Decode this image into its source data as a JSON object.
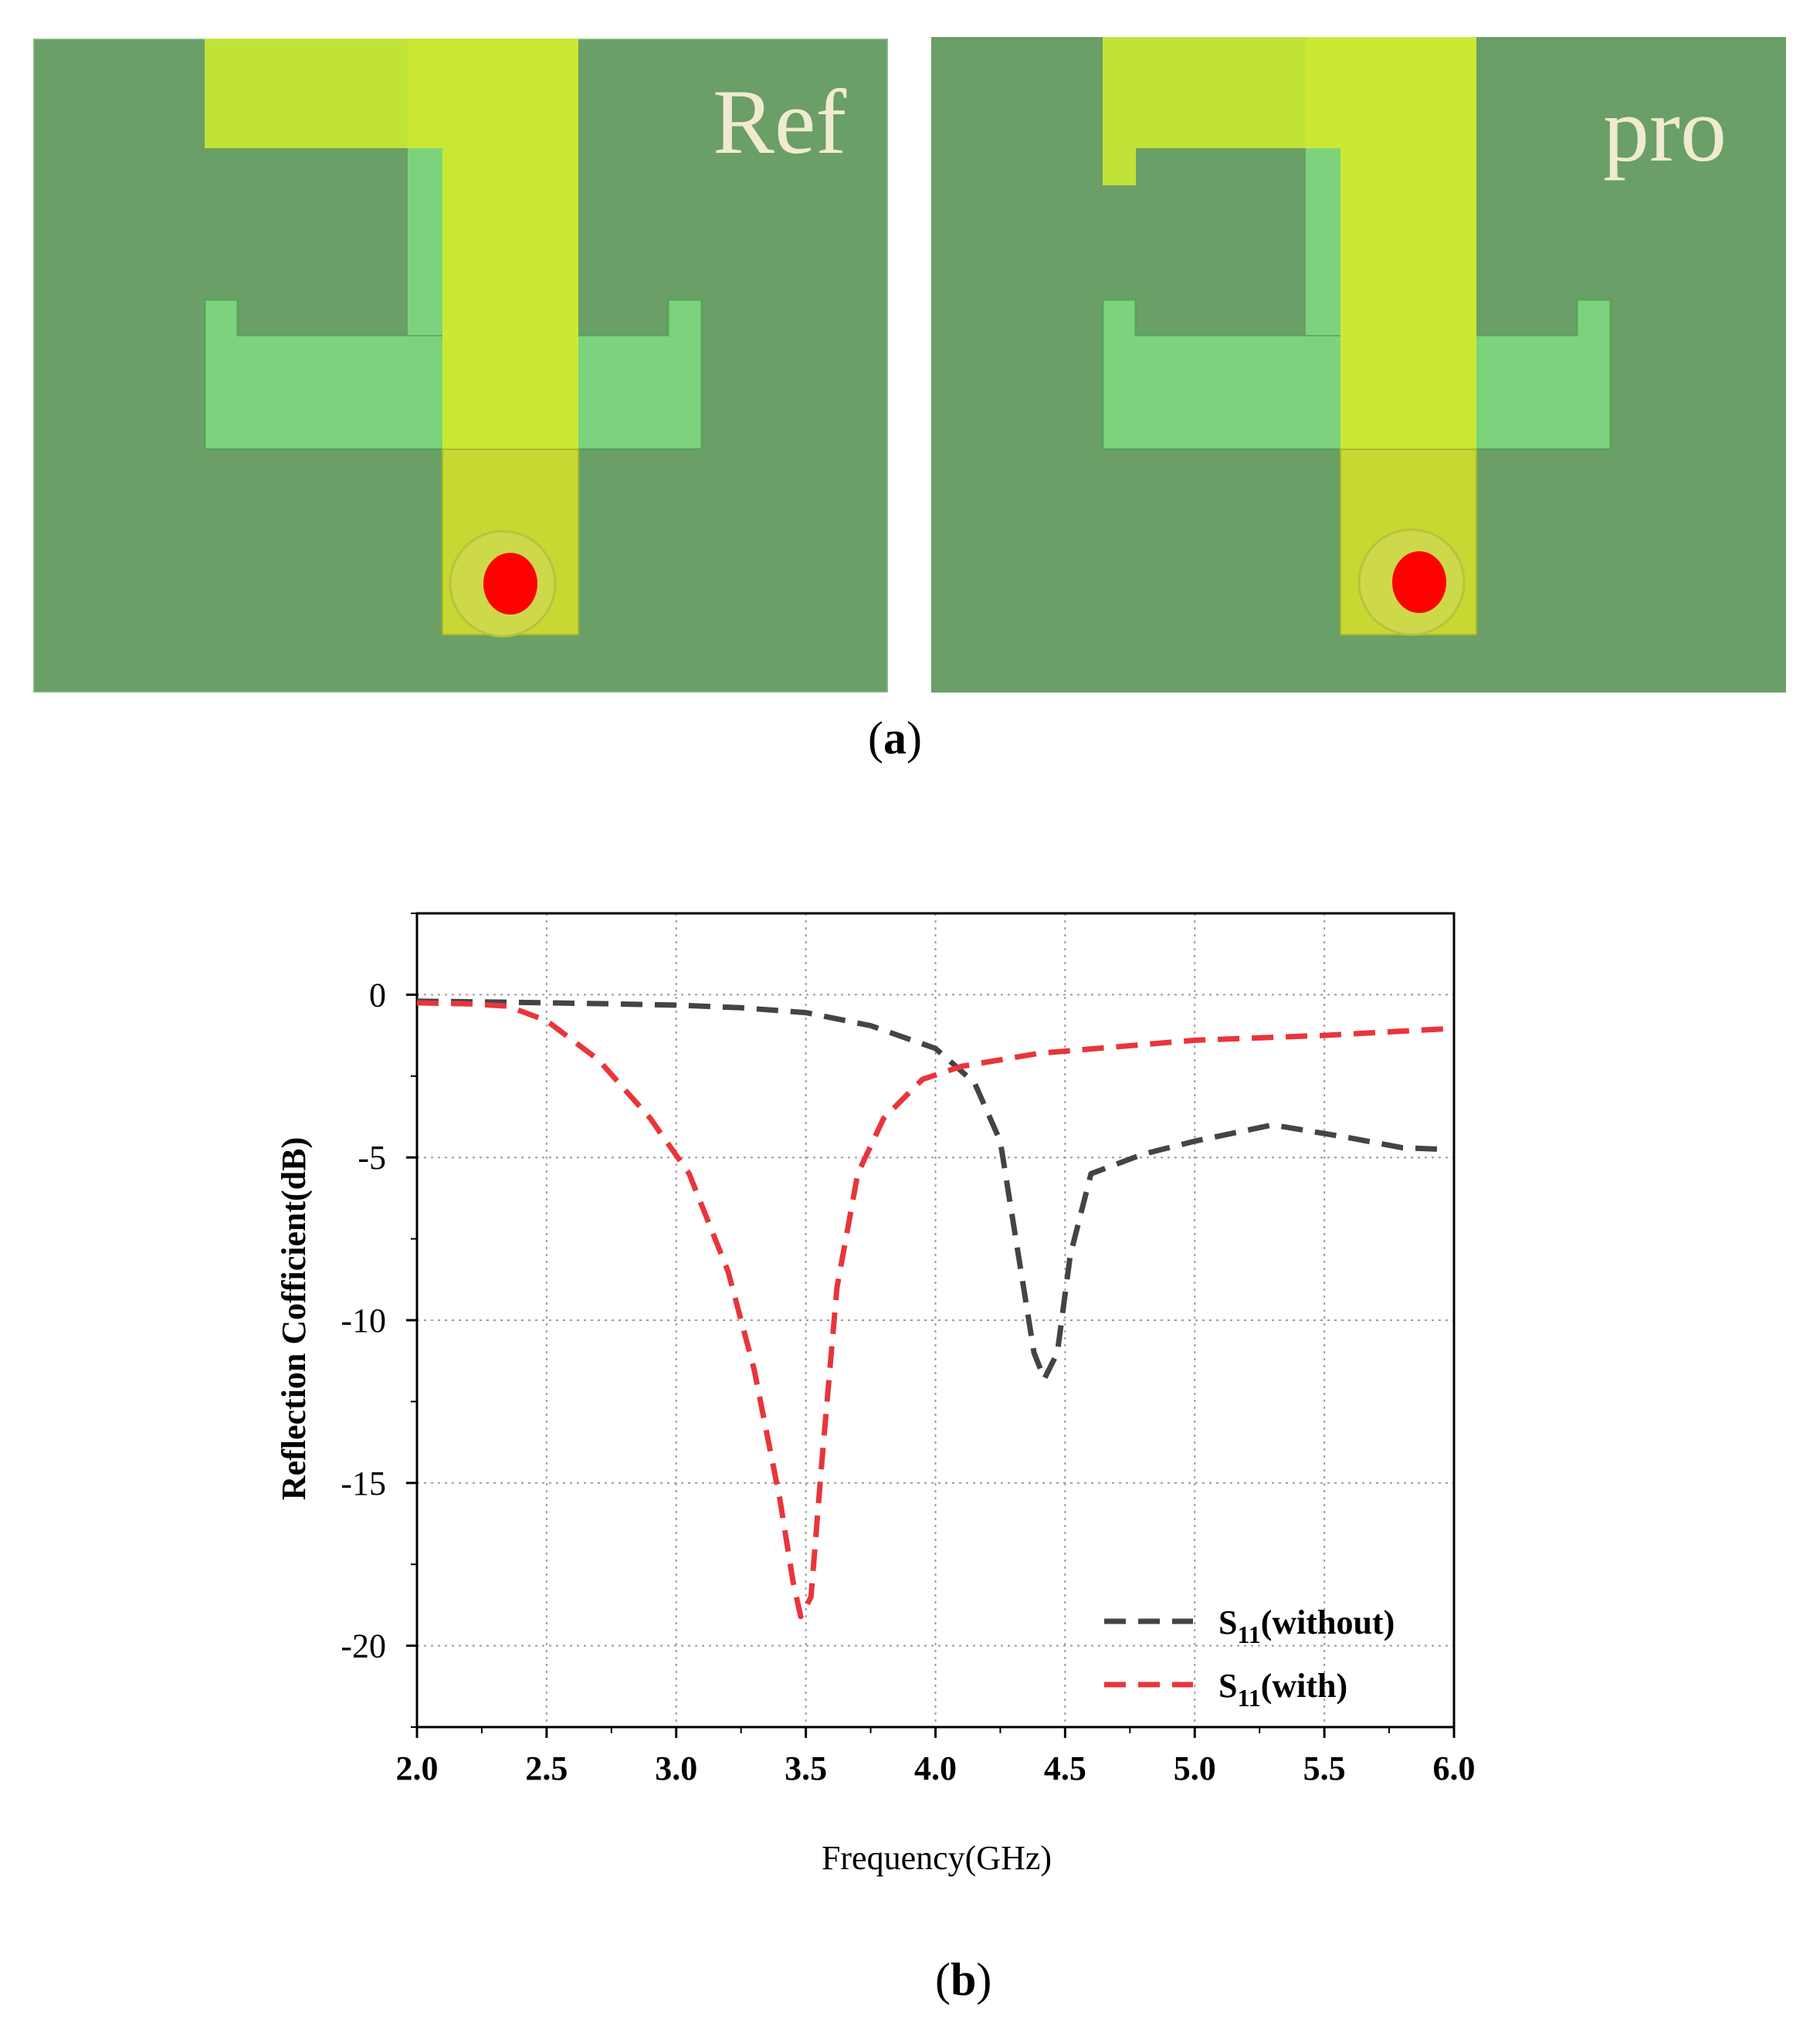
{
  "figure_a": {
    "label_letter": "a",
    "left_title": "Ref",
    "right_title": "pro",
    "colors": {
      "substrate": "#6a9f67",
      "patch": "#cbe932",
      "slot": "#7dd37d",
      "feed": "#ff0000"
    }
  },
  "figure_b": {
    "label_letter": "b"
  },
  "chart_data": {
    "type": "line",
    "title": "",
    "xlabel": "Frequency(GHz)",
    "ylabel": "Reflection Cofficient(dB)",
    "xlim": [
      2.0,
      6.0
    ],
    "ylim": [
      -22.5,
      2.5
    ],
    "xticks": [
      "2.0",
      "2.5",
      "3.0",
      "3.5",
      "4.0",
      "4.5",
      "5.0",
      "5.5",
      "6.0"
    ],
    "yticks": [
      "0",
      "-5",
      "-10",
      "-15",
      "-20"
    ],
    "grid": true,
    "legend_position": "bottom-right",
    "series": [
      {
        "name": "S11(without)",
        "legend_main": "S",
        "legend_sub": "11",
        "legend_suffix": "(without)",
        "color": "#444444",
        "x": [
          2.0,
          2.25,
          2.5,
          2.75,
          3.0,
          3.25,
          3.5,
          3.75,
          4.0,
          4.15,
          4.25,
          4.32,
          4.38,
          4.42,
          4.47,
          4.52,
          4.6,
          4.8,
          5.0,
          5.3,
          5.6,
          5.8,
          5.96
        ],
        "y": [
          -0.2,
          -0.22,
          -0.25,
          -0.28,
          -0.32,
          -0.4,
          -0.55,
          -0.95,
          -1.65,
          -2.7,
          -4.5,
          -8.0,
          -11.0,
          -11.8,
          -11.0,
          -8.0,
          -5.5,
          -4.9,
          -4.5,
          -4.0,
          -4.4,
          -4.7,
          -4.75
        ]
      },
      {
        "name": "S11(with)",
        "legend_main": "S",
        "legend_sub": "11",
        "legend_suffix": "(with)",
        "color": "#e8353c",
        "x": [
          2.0,
          2.2,
          2.35,
          2.5,
          2.7,
          2.9,
          3.05,
          3.2,
          3.3,
          3.4,
          3.45,
          3.48,
          3.52,
          3.56,
          3.62,
          3.7,
          3.8,
          3.95,
          4.1,
          4.4,
          5.0,
          5.5,
          5.96
        ],
        "y": [
          -0.25,
          -0.28,
          -0.35,
          -0.8,
          -2.0,
          -3.8,
          -5.5,
          -8.5,
          -11.5,
          -15.5,
          -18.0,
          -19.1,
          -18.5,
          -14.5,
          -9.0,
          -5.5,
          -3.8,
          -2.6,
          -2.2,
          -1.8,
          -1.4,
          -1.25,
          -1.05
        ]
      }
    ]
  }
}
